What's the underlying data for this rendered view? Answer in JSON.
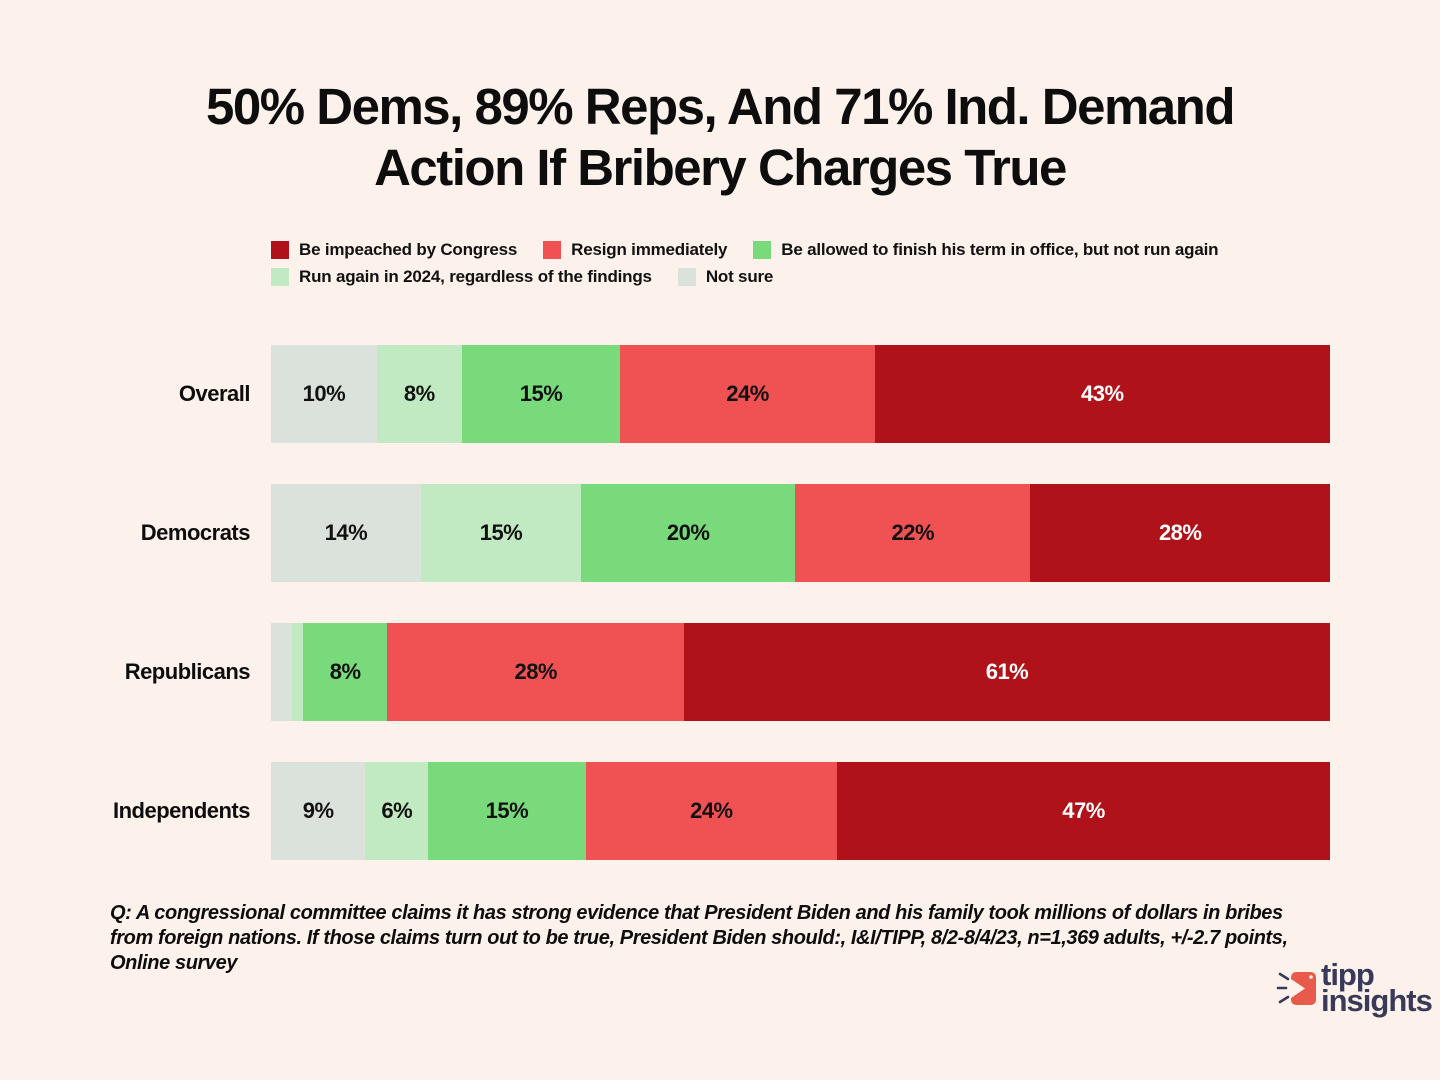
{
  "title": "50% Dems, 89% Reps, And 71% Ind. Demand Action If Bribery Charges True",
  "legend": [
    {
      "label": "Be impeached by Congress",
      "color": "#B01219"
    },
    {
      "label": "Resign immediately",
      "color": "#F05152"
    },
    {
      "label": "Be allowed to finish his term in office, but not run again",
      "color": "#78DA7A"
    },
    {
      "label": "Run again in 2024, regardless of the findings",
      "color": "#C2EAC2"
    },
    {
      "label": "Not sure",
      "color": "#DBE2DC"
    }
  ],
  "chart_data": {
    "type": "bar",
    "variant": "horizontal-stacked",
    "title": "50% Dems, 89% Reps, And 71% Ind. Demand Action If Bribery Charges True",
    "xlabel": "",
    "ylabel": "",
    "xlim": [
      0,
      100
    ],
    "grid": false,
    "legend_position": "top",
    "categories": [
      "Overall",
      "Democrats",
      "Republicans",
      "Independents"
    ],
    "series": [
      {
        "name": "Not sure",
        "color": "#DBE2DC",
        "label_color": "#111111",
        "values": [
          10,
          14,
          2,
          9
        ],
        "labels": [
          "10%",
          "14%",
          "",
          "9%"
        ]
      },
      {
        "name": "Run again in 2024, regardless of the findings",
        "color": "#C2EAC2",
        "label_color": "#111111",
        "values": [
          8,
          15,
          1,
          6
        ],
        "labels": [
          "8%",
          "15%",
          "",
          "6%"
        ]
      },
      {
        "name": "Be allowed to finish his term in office, but not run again",
        "color": "#78DA7A",
        "label_color": "#111111",
        "values": [
          15,
          20,
          8,
          15
        ],
        "labels": [
          "15%",
          "20%",
          "8%",
          "15%"
        ]
      },
      {
        "name": "Resign immediately",
        "color": "#F05152",
        "label_color": "#111111",
        "values": [
          24,
          22,
          28,
          24
        ],
        "labels": [
          "24%",
          "22%",
          "28%",
          "24%"
        ]
      },
      {
        "name": "Be impeached by Congress",
        "color": "#B01219",
        "label_color": "#ffffff",
        "values": [
          43,
          28,
          61,
          47
        ],
        "labels": [
          "43%",
          "28%",
          "61%",
          "47%"
        ]
      }
    ]
  },
  "footnote": "Q: A congressional committee claims it has strong evidence that President Biden and his family took millions of dollars in bribes from foreign nations. If those claims turn out to be true, President Biden should:, I&I/TIPP, 8/2-8/4/23, n=1,369 adults, +/-2.7 points,  Online survey",
  "logo": {
    "line1": "tipp",
    "line2": "insights",
    "icon_color": "#E85B4C",
    "text_color": "#39395A"
  },
  "colors": {
    "background": "#FCF2EB",
    "title_text": "#0d0d0d"
  }
}
